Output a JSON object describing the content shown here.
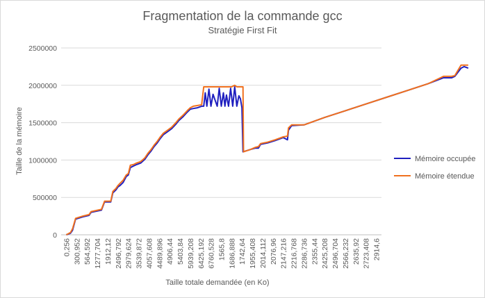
{
  "chart_data": {
    "type": "line",
    "title": "Fragmentation de la commande gcc",
    "subtitle": "Stratégie First Fit",
    "xlabel": "Taille totale demandée  (en Ko)",
    "ylabel": "Taille de la mémoire",
    "ylim": [
      0,
      2500000
    ],
    "yticks": [
      0,
      500000,
      1000000,
      1500000,
      2000000,
      2500000
    ],
    "yticklabels": [
      "0",
      "500000",
      "1000000",
      "1500000",
      "2000000",
      "2500000"
    ],
    "xticklabels": [
      "0,256",
      "300,952",
      "564,592",
      "1277,704",
      "1912,12",
      "2496,792",
      "2979,624",
      "3539,872",
      "4057,608",
      "4489,896",
      "4906,44",
      "5403,84",
      "5939,208",
      "6425,192",
      "6760,528",
      "1565,8",
      "1686,888",
      "1742,64",
      "1955,408",
      "2014,112",
      "2076,96",
      "2147,216",
      "2216,768",
      "2286,736",
      "2355,44",
      "2425,208",
      "2496,704",
      "2566,232",
      "2635,92",
      "2723,408",
      "2914,6"
    ],
    "grid": true,
    "legend_position": "right",
    "colors": {
      "occupied": "#1f1fbf",
      "extended": "#f0701e",
      "grid": "#d9d9d9",
      "axis": "#bfbfbf"
    },
    "series": [
      {
        "name": "Mémoire occupée",
        "key": "occupied",
        "points": [
          [
            0,
            0
          ],
          [
            0.4,
            20000
          ],
          [
            0.6,
            60000
          ],
          [
            0.9,
            210000
          ],
          [
            1.6,
            240000
          ],
          [
            2.2,
            260000
          ],
          [
            2.4,
            300000
          ],
          [
            3.4,
            330000
          ],
          [
            3.7,
            440000
          ],
          [
            4.3,
            440000
          ],
          [
            4.5,
            560000
          ],
          [
            4.8,
            600000
          ],
          [
            5.0,
            640000
          ],
          [
            5.2,
            660000
          ],
          [
            5.5,
            700000
          ],
          [
            5.8,
            780000
          ],
          [
            6.0,
            800000
          ],
          [
            6.2,
            900000
          ],
          [
            6.5,
            920000
          ],
          [
            6.8,
            940000
          ],
          [
            7.2,
            960000
          ],
          [
            7.6,
            1010000
          ],
          [
            7.9,
            1070000
          ],
          [
            8.2,
            1120000
          ],
          [
            8.5,
            1180000
          ],
          [
            8.8,
            1230000
          ],
          [
            9.1,
            1290000
          ],
          [
            9.4,
            1340000
          ],
          [
            9.8,
            1380000
          ],
          [
            10.2,
            1420000
          ],
          [
            10.6,
            1480000
          ],
          [
            10.9,
            1530000
          ],
          [
            11.3,
            1580000
          ],
          [
            11.7,
            1640000
          ],
          [
            12.0,
            1680000
          ],
          [
            12.3,
            1690000
          ],
          [
            12.7,
            1700000
          ],
          [
            13.1,
            1720000
          ],
          [
            13.3,
            1720000
          ],
          [
            13.45,
            1900000
          ],
          [
            13.6,
            1720000
          ],
          [
            13.8,
            1950000
          ],
          [
            14.0,
            1720000
          ],
          [
            14.2,
            1880000
          ],
          [
            14.4,
            1800000
          ],
          [
            14.6,
            1720000
          ],
          [
            14.8,
            1960000
          ],
          [
            15.0,
            1720000
          ],
          [
            15.2,
            1900000
          ],
          [
            15.35,
            1720000
          ],
          [
            15.5,
            1870000
          ],
          [
            15.7,
            1720000
          ],
          [
            15.9,
            1960000
          ],
          [
            16.1,
            1720000
          ],
          [
            16.3,
            1980000
          ],
          [
            16.5,
            1720000
          ],
          [
            16.7,
            1860000
          ],
          [
            16.85,
            1820000
          ],
          [
            17.0,
            1700000
          ],
          [
            17.1,
            1110000
          ],
          [
            17.8,
            1140000
          ],
          [
            18.3,
            1160000
          ],
          [
            18.6,
            1160000
          ],
          [
            18.8,
            1210000
          ],
          [
            19.5,
            1230000
          ],
          [
            20.2,
            1260000
          ],
          [
            21.0,
            1300000
          ],
          [
            21.4,
            1270000
          ],
          [
            21.5,
            1400000
          ],
          [
            21.8,
            1460000
          ],
          [
            23.0,
            1470000
          ],
          [
            25.0,
            1570000
          ],
          [
            27.0,
            1660000
          ],
          [
            29.0,
            1750000
          ],
          [
            31.0,
            1840000
          ],
          [
            33.0,
            1930000
          ],
          [
            35.0,
            2020000
          ],
          [
            36.5,
            2100000
          ],
          [
            37.3,
            2100000
          ],
          [
            37.6,
            2120000
          ],
          [
            38.2,
            2230000
          ],
          [
            38.5,
            2250000
          ],
          [
            38.9,
            2230000
          ]
        ]
      },
      {
        "name": "Mémoire étendue",
        "key": "extended",
        "points": [
          [
            0,
            0
          ],
          [
            0.4,
            30000
          ],
          [
            0.6,
            80000
          ],
          [
            0.9,
            220000
          ],
          [
            1.6,
            250000
          ],
          [
            2.2,
            270000
          ],
          [
            2.4,
            310000
          ],
          [
            3.4,
            340000
          ],
          [
            3.7,
            450000
          ],
          [
            4.3,
            450000
          ],
          [
            4.5,
            580000
          ],
          [
            4.8,
            620000
          ],
          [
            5.0,
            660000
          ],
          [
            5.2,
            690000
          ],
          [
            5.5,
            730000
          ],
          [
            5.8,
            800000
          ],
          [
            6.0,
            820000
          ],
          [
            6.2,
            930000
          ],
          [
            6.5,
            940000
          ],
          [
            6.8,
            960000
          ],
          [
            7.2,
            980000
          ],
          [
            7.6,
            1030000
          ],
          [
            7.9,
            1090000
          ],
          [
            8.2,
            1140000
          ],
          [
            8.5,
            1200000
          ],
          [
            8.8,
            1250000
          ],
          [
            9.1,
            1310000
          ],
          [
            9.4,
            1360000
          ],
          [
            9.8,
            1400000
          ],
          [
            10.2,
            1440000
          ],
          [
            10.6,
            1500000
          ],
          [
            10.9,
            1550000
          ],
          [
            11.3,
            1600000
          ],
          [
            11.7,
            1660000
          ],
          [
            12.0,
            1700000
          ],
          [
            12.3,
            1720000
          ],
          [
            12.7,
            1730000
          ],
          [
            13.1,
            1740000
          ],
          [
            13.3,
            1980000
          ],
          [
            15.8,
            1980000
          ],
          [
            16.0,
            1980000
          ],
          [
            16.3,
            2000000
          ],
          [
            16.5,
            1980000
          ],
          [
            17.1,
            1980000
          ],
          [
            17.15,
            1110000
          ],
          [
            17.8,
            1140000
          ],
          [
            18.3,
            1170000
          ],
          [
            18.6,
            1180000
          ],
          [
            18.8,
            1220000
          ],
          [
            19.5,
            1240000
          ],
          [
            20.2,
            1270000
          ],
          [
            21.0,
            1310000
          ],
          [
            21.4,
            1320000
          ],
          [
            21.5,
            1430000
          ],
          [
            21.8,
            1470000
          ],
          [
            23.0,
            1470000
          ],
          [
            25.0,
            1570000
          ],
          [
            27.0,
            1660000
          ],
          [
            29.0,
            1750000
          ],
          [
            31.0,
            1840000
          ],
          [
            33.0,
            1930000
          ],
          [
            35.0,
            2020000
          ],
          [
            36.5,
            2120000
          ],
          [
            37.3,
            2120000
          ],
          [
            37.6,
            2130000
          ],
          [
            38.2,
            2270000
          ],
          [
            38.5,
            2270000
          ],
          [
            38.9,
            2270000
          ]
        ]
      }
    ]
  }
}
